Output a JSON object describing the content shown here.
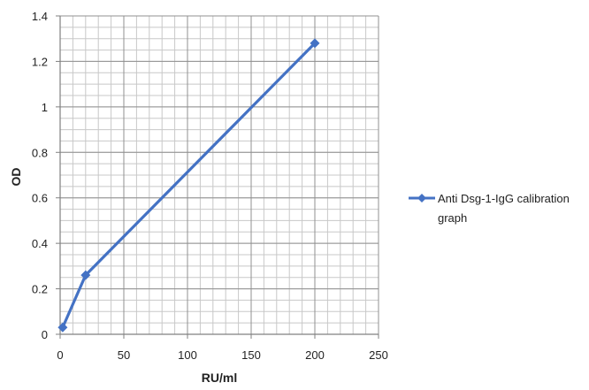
{
  "chart_data": {
    "type": "line",
    "title": "",
    "xlabel": "RU/ml",
    "ylabel": "OD",
    "xlim": [
      0,
      250
    ],
    "ylim": [
      0,
      1.4
    ],
    "x_ticks": [
      0,
      50,
      100,
      150,
      200,
      250
    ],
    "x_tick_labels": [
      "0",
      "50",
      "100",
      "150",
      "200",
      "250"
    ],
    "y_ticks": [
      0,
      0.2,
      0.4,
      0.6,
      0.8,
      1,
      1.2,
      1.4
    ],
    "y_tick_labels": [
      "0",
      "0.2",
      "0.4",
      "0.6",
      "0.8",
      "1",
      "1.2",
      "1.4"
    ],
    "grid": true,
    "legend_position": "right",
    "series": [
      {
        "name": "Anti Dsg-1-IgG calibration graph",
        "legend_lines": [
          "Anti Dsg-1-IgG calibration",
          "graph"
        ],
        "color": "#4472C4",
        "marker": "diamond",
        "x": [
          2,
          20,
          200
        ],
        "y": [
          0.03,
          0.26,
          1.28
        ]
      }
    ]
  }
}
